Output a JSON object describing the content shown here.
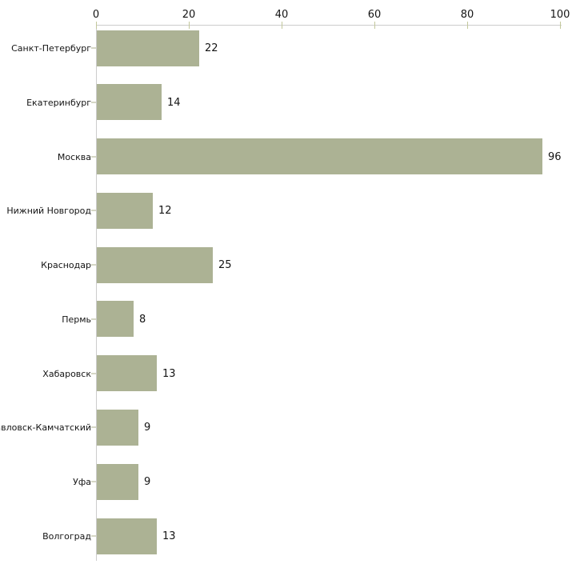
{
  "chart_data": {
    "type": "bar",
    "orientation": "horizontal",
    "title": "",
    "xlabel": "",
    "ylabel": "",
    "categories": [
      "Санкт-Петербург",
      "Екатеринбург",
      "Москва",
      "Нижний Новгород",
      "Краснодар",
      "Пермь",
      "Хабаровск",
      "Петропавловск-Камчатский",
      "Уфа",
      "Волгоград"
    ],
    "values": [
      22,
      14,
      96,
      12,
      25,
      8,
      13,
      9,
      9,
      13
    ],
    "value_labels": [
      "22",
      "14",
      "96",
      "12",
      "25",
      "8",
      "13",
      "9",
      "9",
      "13"
    ],
    "xlim": [
      0,
      100
    ],
    "x_ticks": [
      0,
      20,
      40,
      60,
      80,
      100
    ],
    "x_axis_position": "top",
    "grid": false,
    "legend": "none",
    "bar_color": "#acb294",
    "axis_line_color": "#cccccc",
    "x_tick_color": "#c3c89c",
    "category_tick_color": "#d5d7c5",
    "text_color": "#141414",
    "background_color": "#ffffff"
  }
}
